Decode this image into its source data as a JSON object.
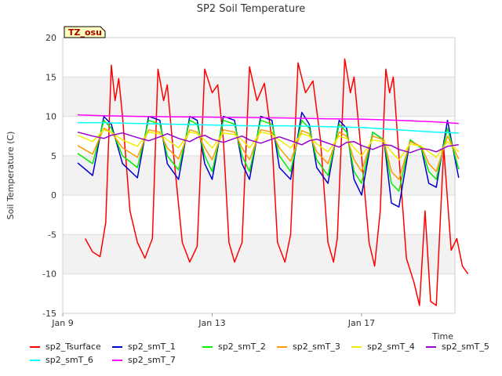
{
  "chart_data": {
    "type": "line",
    "title": "SP2 Soil Temperature",
    "xlabel": "Time",
    "ylabel": "Soil Temperature (C)",
    "annotation": "TZ_osu",
    "xlim": [
      "2025-01-09",
      "2025-01-19T12:00"
    ],
    "ylim": [
      -15,
      20
    ],
    "x_ticks": [
      "Jan 9",
      "Jan 13",
      "Jan 17"
    ],
    "y_ticks": [
      -15,
      -10,
      -5,
      0,
      5,
      10,
      15,
      20
    ],
    "grid": "horizontal bands",
    "legend_position": "bottom",
    "series": [
      {
        "name": "sp2_Tsurface",
        "color": "#ff0000",
        "x": [
          0.6,
          0.8,
          1.0,
          1.15,
          1.3,
          1.4,
          1.5,
          1.6,
          1.8,
          2.0,
          2.2,
          2.4,
          2.55,
          2.7,
          2.8,
          2.95,
          3.2,
          3.4,
          3.6,
          3.8,
          4.0,
          4.15,
          4.3,
          4.45,
          4.6,
          4.8,
          5.0,
          5.2,
          5.4,
          5.6,
          5.75,
          5.95,
          6.1,
          6.3,
          6.5,
          6.7,
          6.9,
          7.1,
          7.25,
          7.35,
          7.55,
          7.7,
          7.8,
          8.0,
          8.2,
          8.35,
          8.5,
          8.65,
          8.75,
          8.85,
          9.0,
          9.2,
          9.4,
          9.55,
          9.7,
          9.85,
          10.0,
          10.2,
          10.4,
          10.55,
          10.7,
          10.85
        ],
        "y": [
          -5.5,
          -7.2,
          -7.8,
          -3.5,
          16.5,
          12,
          14.8,
          10,
          -2,
          -6,
          -8,
          -5.5,
          16,
          12,
          14,
          6,
          -6,
          -8.5,
          -6.5,
          16,
          13,
          14,
          7,
          -6,
          -8.5,
          -6,
          16.3,
          12,
          14.2,
          7,
          -6,
          -8.5,
          -5,
          16.8,
          13,
          14.5,
          7,
          -6,
          -8.5,
          -5.5,
          17.3,
          13,
          15,
          5,
          -6,
          -9,
          -2,
          16,
          13,
          15,
          5,
          -8,
          -11,
          -14,
          -2,
          -13.5,
          -14,
          6,
          -7,
          -5.5,
          -9,
          -10
        ]
      },
      {
        "name": "sp2_smT_1",
        "color": "#0000cc",
        "x": [
          0.4,
          0.8,
          1.1,
          1.3,
          1.6,
          2.0,
          2.3,
          2.6,
          2.8,
          3.1,
          3.4,
          3.6,
          3.8,
          4.0,
          4.3,
          4.6,
          4.8,
          5.0,
          5.3,
          5.6,
          5.8,
          6.1,
          6.4,
          6.6,
          6.8,
          7.1,
          7.4,
          7.6,
          7.8,
          8.0,
          8.3,
          8.6,
          8.8,
          9.0,
          9.3,
          9.6,
          9.8,
          10.0,
          10.3,
          10.6
        ],
        "y": [
          4.1,
          2.5,
          10,
          9,
          4,
          2.2,
          10,
          9.5,
          4,
          2,
          10,
          9.5,
          4,
          2,
          10,
          9.5,
          4,
          2,
          10,
          9.5,
          3.5,
          2,
          10.5,
          9,
          3.5,
          1.5,
          9.5,
          8.5,
          2,
          0,
          8,
          7,
          -1,
          -1.5,
          7,
          6,
          1.5,
          1,
          9.5,
          2.2
        ]
      },
      {
        "name": "sp2_smT_2",
        "color": "#00ee00",
        "x": [
          0.4,
          0.8,
          1.1,
          1.3,
          1.6,
          2.0,
          2.3,
          2.6,
          2.8,
          3.1,
          3.4,
          3.6,
          3.8,
          4.0,
          4.3,
          4.6,
          4.8,
          5.0,
          5.3,
          5.6,
          5.8,
          6.1,
          6.4,
          6.6,
          6.8,
          7.1,
          7.4,
          7.6,
          7.8,
          8.0,
          8.3,
          8.6,
          8.8,
          9.0,
          9.3,
          9.6,
          9.8,
          10.0,
          10.3,
          10.6
        ],
        "y": [
          5.3,
          4,
          9.5,
          8.5,
          5,
          3.5,
          9.5,
          9,
          5,
          3.2,
          9.5,
          9,
          5,
          3,
          9.5,
          9,
          5,
          3,
          9.5,
          9,
          5,
          3,
          9.5,
          8.5,
          4.5,
          2.5,
          9,
          8,
          3,
          1.5,
          8,
          7,
          1.5,
          0.5,
          7,
          6,
          3,
          2,
          8.5,
          3.3
        ]
      },
      {
        "name": "sp2_smT_3",
        "color": "#ff9900",
        "x": [
          0.4,
          0.8,
          1.1,
          1.3,
          1.6,
          2.0,
          2.3,
          2.6,
          2.8,
          3.1,
          3.4,
          3.6,
          3.8,
          4.0,
          4.3,
          4.6,
          4.8,
          5.0,
          5.3,
          5.6,
          5.8,
          6.1,
          6.4,
          6.6,
          6.8,
          7.1,
          7.4,
          7.6,
          7.8,
          8.0,
          8.3,
          8.6,
          8.8,
          9.0,
          9.3,
          9.6,
          9.8,
          10.0,
          10.3,
          10.6
        ],
        "y": [
          6.3,
          5.2,
          8.5,
          8,
          6,
          4.8,
          8.3,
          8,
          6,
          4.6,
          8.3,
          8,
          6,
          4.5,
          8.3,
          8,
          6,
          4.5,
          8.3,
          8,
          6,
          4.3,
          8.2,
          7.8,
          5.5,
          4,
          8,
          7.5,
          4.5,
          3,
          7.5,
          7,
          3,
          2,
          6.8,
          6.2,
          4,
          3,
          7.5,
          4.6
        ]
      },
      {
        "name": "sp2_smT_4",
        "color": "#eeee00",
        "x": [
          0.4,
          0.8,
          1.1,
          1.3,
          1.6,
          2.0,
          2.3,
          2.6,
          2.8,
          3.1,
          3.4,
          3.6,
          3.8,
          4.0,
          4.3,
          4.6,
          4.8,
          5.0,
          5.3,
          5.6,
          5.8,
          6.1,
          6.4,
          6.6,
          6.8,
          7.1,
          7.4,
          7.6,
          7.8,
          8.0,
          8.3,
          8.6,
          8.8,
          9.0,
          9.3,
          9.6,
          9.8,
          10.0,
          10.3,
          10.6
        ],
        "y": [
          7.6,
          6.8,
          8.3,
          8,
          7,
          6.2,
          8,
          7.8,
          7,
          6,
          8,
          7.8,
          7,
          6,
          7.9,
          7.7,
          7,
          6,
          8,
          7.7,
          7,
          6,
          7.8,
          7.5,
          6.5,
          5.5,
          7.5,
          7.2,
          6,
          5,
          7,
          6.8,
          5.5,
          4.5,
          6.5,
          6.2,
          5.5,
          4.8,
          6.8,
          5.5
        ]
      },
      {
        "name": "sp2_smT_5",
        "color": "#9900cc",
        "x": [
          0.4,
          0.8,
          1.1,
          1.3,
          1.6,
          2.0,
          2.3,
          2.6,
          2.8,
          3.1,
          3.4,
          3.6,
          3.8,
          4.0,
          4.3,
          4.6,
          4.8,
          5.0,
          5.3,
          5.6,
          5.8,
          6.1,
          6.4,
          6.6,
          6.8,
          7.1,
          7.4,
          7.6,
          7.8,
          8.0,
          8.3,
          8.6,
          8.8,
          9.0,
          9.3,
          9.6,
          9.8,
          10.0,
          10.3,
          10.6
        ],
        "y": [
          8,
          7.5,
          7.2,
          7.6,
          7.9,
          7.3,
          6.9,
          7.4,
          7.8,
          7.2,
          6.8,
          7.3,
          7.6,
          7.1,
          6.7,
          7.2,
          7.5,
          7,
          6.6,
          7.1,
          7.4,
          6.9,
          6.4,
          6.9,
          7.1,
          6.6,
          6.1,
          6.7,
          6.8,
          6.3,
          5.8,
          6.4,
          6.3,
          5.8,
          5.4,
          5.9,
          5.8,
          5.5,
          6.2,
          6.4
        ]
      },
      {
        "name": "sp2_smT_6",
        "color": "#00ffff",
        "x": [
          0.4,
          1.0,
          2.0,
          3.0,
          4.0,
          5.0,
          6.0,
          7.0,
          8.0,
          9.0,
          10.0,
          10.6
        ],
        "y": [
          9.2,
          9.2,
          9.1,
          9.0,
          8.9,
          8.8,
          8.8,
          8.7,
          8.6,
          8.3,
          8.0,
          7.9
        ]
      },
      {
        "name": "sp2_smT_7",
        "color": "#ff00ff",
        "x": [
          0.4,
          1.0,
          2.0,
          3.0,
          4.0,
          5.0,
          6.0,
          7.0,
          8.0,
          9.0,
          10.0,
          10.6
        ],
        "y": [
          10.2,
          10.1,
          10.0,
          9.95,
          9.9,
          9.85,
          9.8,
          9.7,
          9.65,
          9.5,
          9.3,
          9.1
        ]
      }
    ]
  }
}
